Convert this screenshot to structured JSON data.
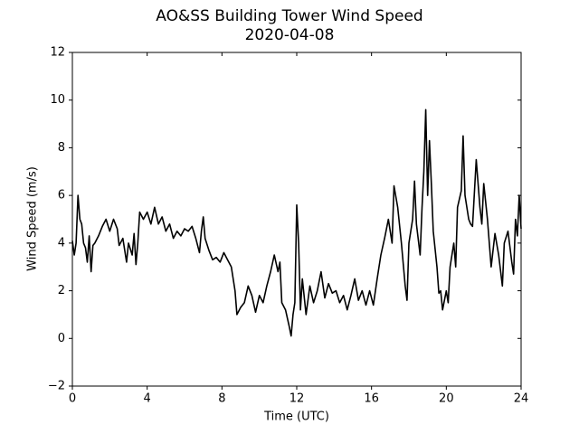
{
  "chart_data": {
    "type": "line",
    "title": "AO&SS Building Tower Wind Speed",
    "subtitle": "2020-04-08",
    "x_label": "Time (UTC)",
    "y_label": "Wind Speed (m/s)",
    "x": [
      0.0,
      0.1,
      0.2,
      0.3,
      0.4,
      0.5,
      0.6,
      0.7,
      0.8,
      0.9,
      1.0,
      1.1,
      1.2,
      1.4,
      1.6,
      1.8,
      2.0,
      2.2,
      2.4,
      2.5,
      2.7,
      2.9,
      3.0,
      3.2,
      3.3,
      3.4,
      3.5,
      3.6,
      3.8,
      4.0,
      4.2,
      4.4,
      4.6,
      4.8,
      5.0,
      5.2,
      5.4,
      5.6,
      5.8,
      6.0,
      6.2,
      6.4,
      6.6,
      6.8,
      6.9,
      7.0,
      7.1,
      7.3,
      7.5,
      7.7,
      7.9,
      8.1,
      8.3,
      8.5,
      8.7,
      8.8,
      9.0,
      9.2,
      9.4,
      9.6,
      9.8,
      10.0,
      10.2,
      10.4,
      10.6,
      10.8,
      11.0,
      11.1,
      11.2,
      11.4,
      11.6,
      11.7,
      11.8,
      11.9,
      12.0,
      12.1,
      12.2,
      12.3,
      12.5,
      12.7,
      12.9,
      13.1,
      13.3,
      13.5,
      13.7,
      13.9,
      14.1,
      14.3,
      14.5,
      14.7,
      14.9,
      15.1,
      15.3,
      15.5,
      15.7,
      15.9,
      16.1,
      16.3,
      16.5,
      16.7,
      16.9,
      17.1,
      17.2,
      17.4,
      17.6,
      17.8,
      17.9,
      18.0,
      18.2,
      18.3,
      18.4,
      18.6,
      18.7,
      18.8,
      18.9,
      19.0,
      19.1,
      19.2,
      19.3,
      19.5,
      19.6,
      19.7,
      19.8,
      20.0,
      20.1,
      20.2,
      20.4,
      20.5,
      20.6,
      20.8,
      20.9,
      21.0,
      21.2,
      21.3,
      21.4,
      21.6,
      21.8,
      21.9,
      22.0,
      22.2,
      22.4,
      22.6,
      22.8,
      23.0,
      23.1,
      23.3,
      23.5,
      23.6,
      23.7,
      23.8,
      23.9,
      24.0
    ],
    "series": [
      {
        "color": "#000000",
        "values": [
          4.1,
          3.5,
          4.0,
          6.0,
          5.0,
          4.8,
          4.0,
          3.8,
          3.2,
          4.3,
          2.8,
          3.9,
          4.0,
          4.3,
          4.7,
          5.0,
          4.5,
          5.0,
          4.6,
          3.9,
          4.2,
          3.2,
          4.0,
          3.5,
          4.4,
          3.1,
          4.0,
          5.3,
          5.0,
          5.3,
          4.8,
          5.5,
          4.8,
          5.1,
          4.5,
          4.8,
          4.2,
          4.5,
          4.3,
          4.6,
          4.5,
          4.7,
          4.2,
          3.6,
          4.5,
          5.1,
          4.2,
          3.7,
          3.3,
          3.4,
          3.2,
          3.6,
          3.3,
          3.0,
          2.0,
          1.0,
          1.3,
          1.5,
          2.2,
          1.8,
          1.1,
          1.8,
          1.5,
          2.2,
          2.8,
          3.5,
          2.8,
          3.2,
          1.5,
          1.2,
          0.5,
          0.1,
          1.0,
          1.5,
          5.6,
          4.0,
          1.2,
          2.5,
          1.0,
          2.2,
          1.5,
          2.0,
          2.8,
          1.7,
          2.3,
          1.9,
          2.0,
          1.5,
          1.8,
          1.2,
          1.8,
          2.5,
          1.6,
          2.0,
          1.4,
          2.0,
          1.4,
          2.5,
          3.5,
          4.2,
          5.0,
          4.0,
          6.4,
          5.5,
          4.0,
          2.2,
          1.6,
          4.0,
          5.0,
          6.6,
          4.8,
          3.5,
          5.5,
          7.0,
          9.6,
          6.0,
          8.3,
          6.5,
          4.5,
          3.0,
          1.9,
          2.0,
          1.2,
          2.0,
          1.5,
          3.0,
          4.0,
          3.0,
          5.5,
          6.2,
          8.5,
          6.0,
          5.0,
          4.8,
          4.7,
          7.5,
          5.5,
          4.8,
          6.5,
          5.0,
          3.0,
          4.4,
          3.5,
          2.2,
          4.0,
          4.5,
          3.2,
          2.7,
          5.0,
          4.3,
          6.0,
          4.6
        ]
      }
    ],
    "xlim": [
      0,
      24
    ],
    "xticks": [
      0,
      4,
      8,
      12,
      16,
      20,
      24
    ],
    "ylim": [
      -2,
      12
    ],
    "yticks": [
      {
        "value": -2,
        "label": "−2"
      },
      0,
      2,
      4,
      6,
      8,
      10,
      12
    ]
  }
}
